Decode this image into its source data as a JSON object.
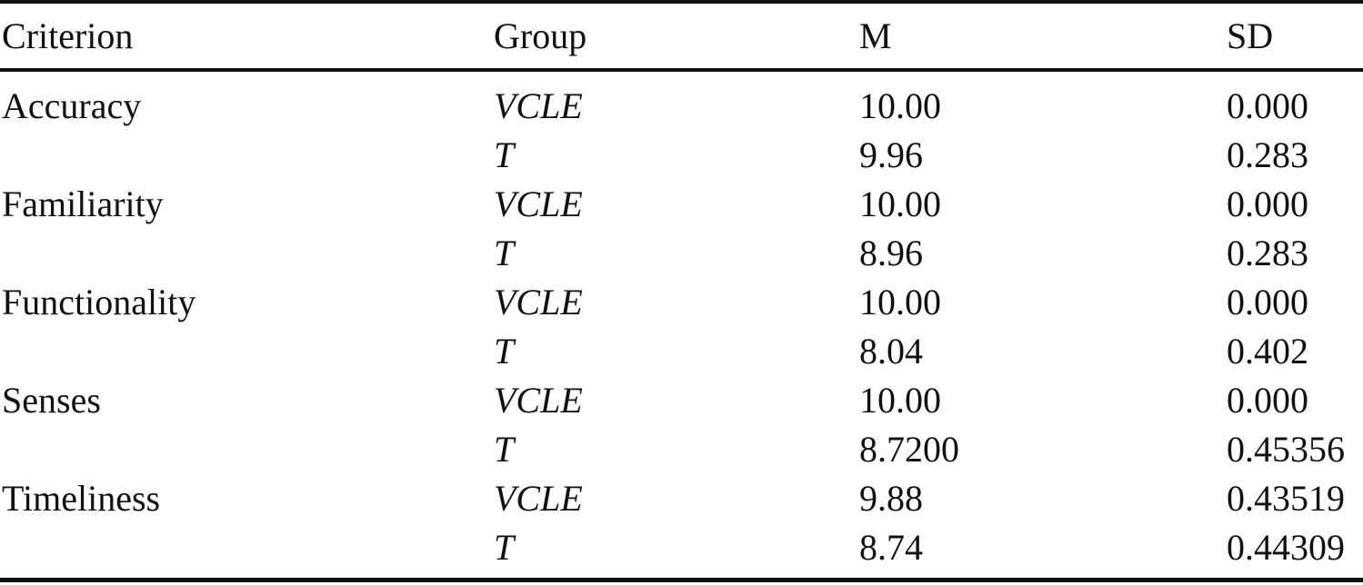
{
  "table": {
    "headers": {
      "criterion": "Criterion",
      "group": "Group",
      "m": "M",
      "sd": "SD"
    },
    "rows": [
      {
        "criterion": "Accuracy",
        "group": "VCLE",
        "m": "10.00",
        "sd": "0.000"
      },
      {
        "criterion": "",
        "group": "T",
        "m": "9.96",
        "sd": "0.283"
      },
      {
        "criterion": "Familiarity",
        "group": "VCLE",
        "m": "10.00",
        "sd": "0.000"
      },
      {
        "criterion": "",
        "group": "T",
        "m": "8.96",
        "sd": "0.283"
      },
      {
        "criterion": "Functionality",
        "group": "VCLE",
        "m": "10.00",
        "sd": "0.000"
      },
      {
        "criterion": "",
        "group": "T",
        "m": "8.04",
        "sd": "0.402"
      },
      {
        "criterion": "Senses",
        "group": "VCLE",
        "m": "10.00",
        "sd": "0.000"
      },
      {
        "criterion": "",
        "group": "T",
        "m": "8.7200",
        "sd": "0.45356"
      },
      {
        "criterion": "Timeliness",
        "group": "VCLE",
        "m": "9.88",
        "sd": "0.43519"
      },
      {
        "criterion": "",
        "group": "T",
        "m": "8.74",
        "sd": "0.44309"
      }
    ]
  }
}
